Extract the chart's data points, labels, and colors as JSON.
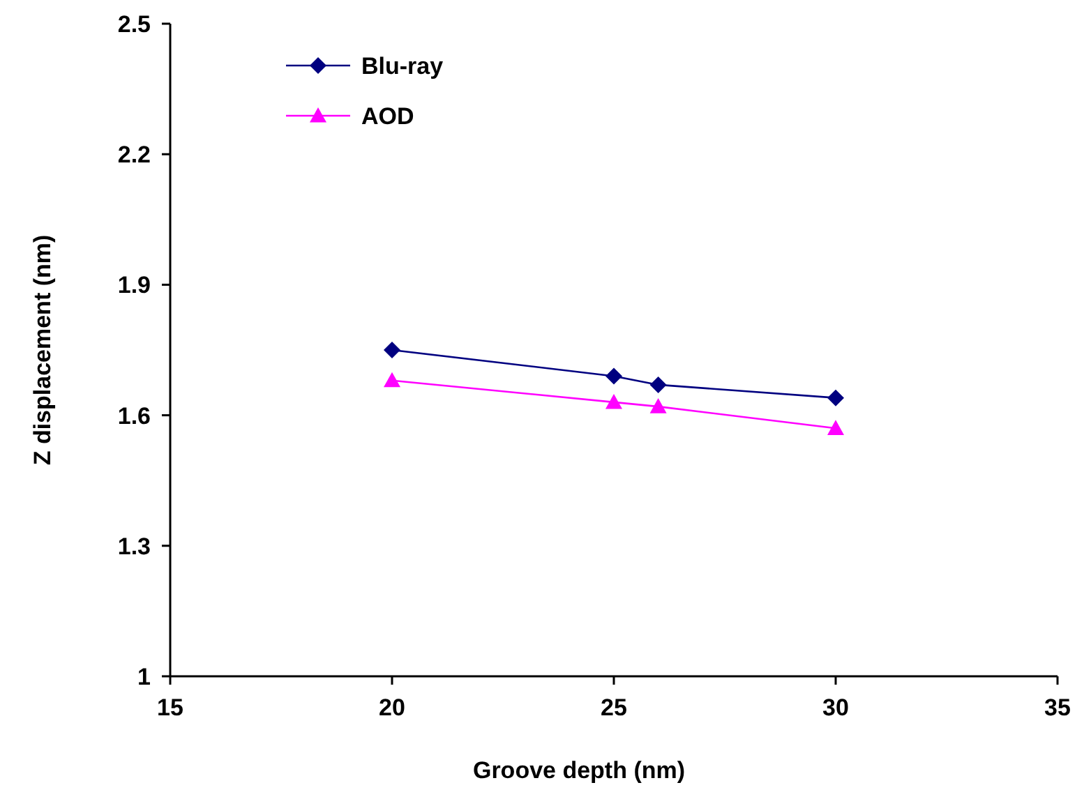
{
  "chart_data": {
    "type": "line",
    "xlabel": "Groove depth (nm)",
    "ylabel": "Z displacement (nm)",
    "x": [
      20,
      25,
      26,
      30
    ],
    "series": [
      {
        "name": "Blu-ray",
        "color": "#000080",
        "values": [
          1.75,
          1.69,
          1.67,
          1.64
        ],
        "marker": "diamond"
      },
      {
        "name": "AOD",
        "color": "#ff00ff",
        "values": [
          1.68,
          1.63,
          1.62,
          1.57
        ],
        "marker": "triangle"
      }
    ],
    "xlim": [
      15,
      35
    ],
    "xticks": [
      15,
      20,
      25,
      30,
      35
    ],
    "ylim": [
      1,
      2.5
    ],
    "yticks": [
      1,
      1.3,
      1.6,
      1.9,
      2.2,
      2.5
    ],
    "grid": false,
    "legend": "top left",
    "line_style": "solid"
  }
}
